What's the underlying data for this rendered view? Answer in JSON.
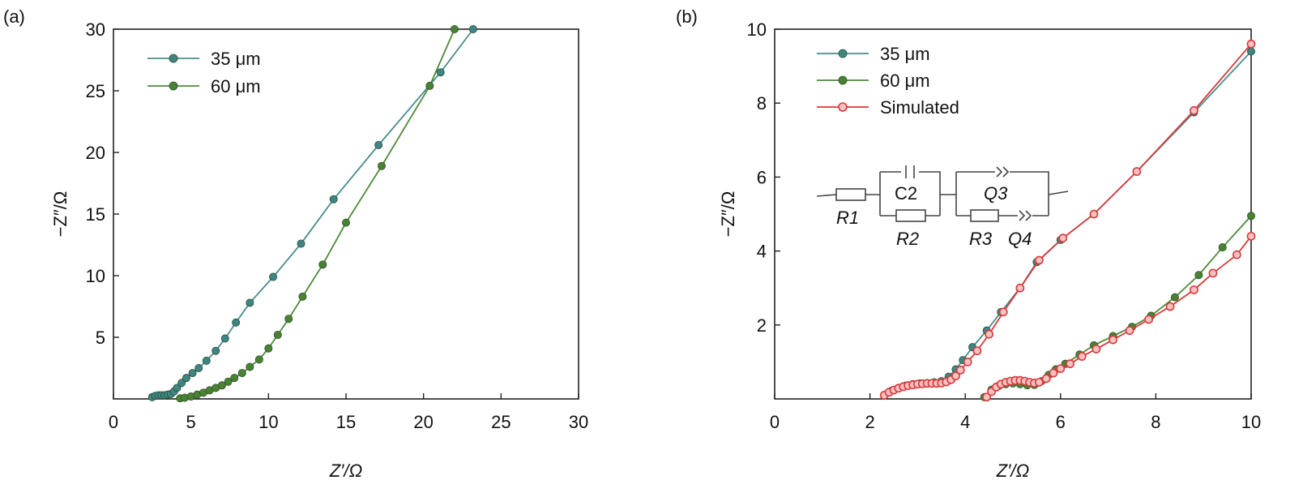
{
  "chart_data": [
    {
      "panel_label": "(a)",
      "type": "scatter",
      "xlabel": "Z′/Ω",
      "ylabel": "−Z″/Ω",
      "xlim": [
        0,
        30
      ],
      "ylim": [
        0,
        30
      ],
      "xticks": [
        "0",
        "5",
        "10",
        "15",
        "20",
        "25",
        "30"
      ],
      "yticks": [
        "5",
        "10",
        "15",
        "20",
        "25",
        "30"
      ],
      "ytick_values": [
        5,
        10,
        15,
        20,
        25,
        30
      ],
      "xtick_values": [
        0,
        5,
        10,
        15,
        20,
        25,
        30
      ],
      "grid": false,
      "legend_position": "top-left",
      "series": [
        {
          "name": "35 μm",
          "color": "#4a8c8c",
          "marker_color": "#3f8585",
          "x": [
            2.5,
            2.7,
            2.9,
            3.1,
            3.3,
            3.5,
            3.7,
            3.9,
            4.1,
            4.4,
            4.7,
            5.1,
            5.5,
            6.0,
            6.6,
            7.2,
            7.9,
            8.8,
            10.3,
            12.1,
            14.2,
            17.1,
            21.1,
            23.2
          ],
          "y": [
            0.15,
            0.25,
            0.3,
            0.3,
            0.3,
            0.35,
            0.4,
            0.6,
            0.9,
            1.3,
            1.7,
            2.1,
            2.5,
            3.1,
            3.9,
            4.9,
            6.2,
            7.8,
            9.9,
            12.6,
            16.2,
            20.6,
            26.5,
            30
          ],
          "line_end": [
            23.2,
            30
          ]
        },
        {
          "name": "60 μm",
          "color": "#4e8a3a",
          "marker_color": "#4a8233",
          "x": [
            4.3,
            4.6,
            5.0,
            5.4,
            5.8,
            6.2,
            6.6,
            7.0,
            7.4,
            7.8,
            8.3,
            8.8,
            9.4,
            10.0,
            10.6,
            11.3,
            12.2,
            13.5,
            15.0,
            17.3,
            20.4,
            22.0
          ],
          "y": [
            0.05,
            0.1,
            0.2,
            0.35,
            0.5,
            0.7,
            0.9,
            1.1,
            1.4,
            1.7,
            2.1,
            2.6,
            3.2,
            4.1,
            5.2,
            6.5,
            8.3,
            10.9,
            14.3,
            18.9,
            25.4,
            30
          ],
          "line_end": [
            22.0,
            30
          ]
        }
      ]
    },
    {
      "panel_label": "(b)",
      "type": "scatter",
      "xlabel": "Z′/Ω",
      "ylabel": "−Z″/Ω",
      "xlim": [
        0,
        10
      ],
      "ylim": [
        0,
        10
      ],
      "xticks": [
        "0",
        "2",
        "4",
        "6",
        "8",
        "10"
      ],
      "yticks": [
        "2",
        "4",
        "6",
        "8",
        "10"
      ],
      "ytick_values": [
        2,
        4,
        6,
        8,
        10
      ],
      "xtick_values": [
        0,
        2,
        4,
        6,
        8,
        10
      ],
      "grid": false,
      "legend_position": "top-left",
      "series": [
        {
          "name": "35 μm",
          "color": "#4a8c8c",
          "marker_color": "#3f8585",
          "x": [
            2.3,
            2.45,
            2.6,
            2.75,
            2.9,
            3.05,
            3.2,
            3.35,
            3.5,
            3.65,
            3.8,
            3.95,
            4.15,
            4.45,
            4.75,
            5.15,
            5.5,
            6.0,
            6.7,
            7.6,
            8.8,
            10.0
          ],
          "y": [
            0.1,
            0.22,
            0.3,
            0.36,
            0.4,
            0.42,
            0.43,
            0.45,
            0.48,
            0.6,
            0.8,
            1.05,
            1.4,
            1.85,
            2.35,
            3.0,
            3.7,
            4.3,
            5.0,
            6.15,
            7.75,
            9.4
          ]
        },
        {
          "name": "60 μm",
          "color": "#4e8a3a",
          "marker_color": "#4a8233",
          "x": [
            4.4,
            4.55,
            4.7,
            4.85,
            5.0,
            5.15,
            5.3,
            5.45,
            5.6,
            5.75,
            5.9,
            6.1,
            6.4,
            6.7,
            7.1,
            7.5,
            7.9,
            8.4,
            8.9,
            9.4,
            10.0
          ],
          "y": [
            0.05,
            0.25,
            0.35,
            0.4,
            0.42,
            0.4,
            0.37,
            0.38,
            0.48,
            0.65,
            0.8,
            0.95,
            1.2,
            1.45,
            1.7,
            1.95,
            2.25,
            2.75,
            3.35,
            4.1,
            4.95
          ]
        },
        {
          "name": "Simulated",
          "color": "#d93a3a",
          "marker_color": "#e06060",
          "x": [
            2.3,
            2.4,
            2.5,
            2.6,
            2.7,
            2.8,
            2.9,
            3.0,
            3.1,
            3.2,
            3.3,
            3.4,
            3.5,
            3.6,
            3.7,
            3.8,
            3.9,
            4.05,
            4.25,
            4.5,
            4.8,
            5.15,
            5.55,
            6.05,
            6.7,
            7.6,
            8.8,
            10.0,
            4.45,
            4.55,
            4.65,
            4.75,
            4.85,
            4.95,
            5.05,
            5.15,
            5.25,
            5.35,
            5.45,
            5.55,
            5.7,
            5.85,
            6.0,
            6.2,
            6.45,
            6.75,
            7.1,
            7.45,
            7.85,
            8.3,
            8.8,
            9.2,
            9.7,
            10.0
          ],
          "y": [
            0.1,
            0.18,
            0.24,
            0.29,
            0.33,
            0.36,
            0.38,
            0.4,
            0.41,
            0.42,
            0.42,
            0.42,
            0.43,
            0.46,
            0.52,
            0.62,
            0.78,
            1.0,
            1.3,
            1.75,
            2.35,
            3.0,
            3.75,
            4.35,
            5.0,
            6.15,
            7.8,
            9.6,
            0.05,
            0.2,
            0.32,
            0.4,
            0.45,
            0.48,
            0.5,
            0.5,
            0.48,
            0.45,
            0.43,
            0.45,
            0.55,
            0.7,
            0.82,
            0.95,
            1.15,
            1.35,
            1.6,
            1.85,
            2.15,
            2.5,
            2.95,
            3.4,
            3.9,
            4.4
          ],
          "segments": [
            28,
            26
          ]
        }
      ],
      "inset_circuit": {
        "labels": {
          "r1": "R1",
          "c2": "C2",
          "r2": "R2",
          "q3": "Q3",
          "r3": "R3",
          "q4": "Q4"
        }
      }
    }
  ]
}
